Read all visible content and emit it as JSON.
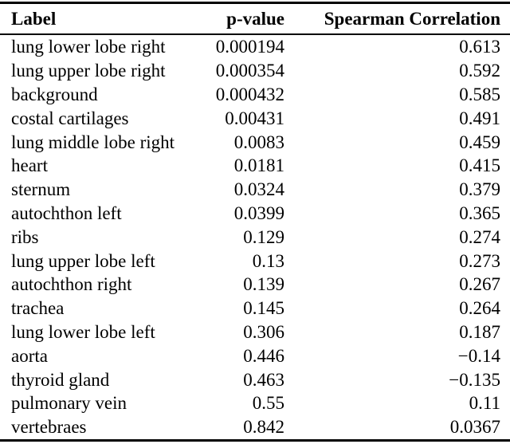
{
  "colors": {
    "text": "#000000",
    "background": "#ffffff",
    "rule": "#000000"
  },
  "table": {
    "columns": [
      {
        "label": "Label",
        "align": "left"
      },
      {
        "label": "p-value",
        "align": "right"
      },
      {
        "label": "Spearman Correlation",
        "align": "right"
      }
    ],
    "rows": [
      {
        "label": "lung lower lobe right",
        "p_value": "0.000194",
        "spearman": "0.613"
      },
      {
        "label": "lung upper lobe right",
        "p_value": "0.000354",
        "spearman": "0.592"
      },
      {
        "label": "background",
        "p_value": "0.000432",
        "spearman": "0.585"
      },
      {
        "label": "costal cartilages",
        "p_value": "0.00431",
        "spearman": "0.491"
      },
      {
        "label": "lung middle lobe right",
        "p_value": "0.0083",
        "spearman": "0.459"
      },
      {
        "label": "heart",
        "p_value": "0.0181",
        "spearman": "0.415"
      },
      {
        "label": "sternum",
        "p_value": "0.0324",
        "spearman": "0.379"
      },
      {
        "label": "autochthon left",
        "p_value": "0.0399",
        "spearman": "0.365"
      },
      {
        "label": "ribs",
        "p_value": "0.129",
        "spearman": "0.274"
      },
      {
        "label": "lung upper lobe left",
        "p_value": "0.13",
        "spearman": "0.273"
      },
      {
        "label": "autochthon right",
        "p_value": "0.139",
        "spearman": "0.267"
      },
      {
        "label": "trachea",
        "p_value": "0.145",
        "spearman": "0.264"
      },
      {
        "label": "lung lower lobe left",
        "p_value": "0.306",
        "spearman": "0.187"
      },
      {
        "label": "aorta",
        "p_value": "0.446",
        "spearman": "−0.14"
      },
      {
        "label": "thyroid gland",
        "p_value": "0.463",
        "spearman": "−0.135"
      },
      {
        "label": "pulmonary vein",
        "p_value": "0.55",
        "spearman": "0.11"
      },
      {
        "label": "vertebraes",
        "p_value": "0.842",
        "spearman": "0.0367"
      }
    ]
  }
}
